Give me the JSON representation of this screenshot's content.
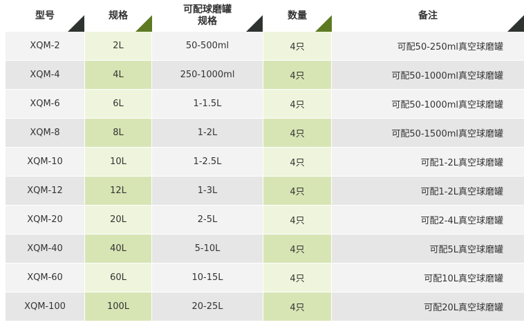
{
  "headers": [
    "型号",
    "规格",
    "可配球磨罐\n规格",
    "数量",
    "备注"
  ],
  "header_line1": "可配球磨罐",
  "header_line2": "规格",
  "colors": {
    "header_triangle_dark": "#2e3330",
    "header_triangle_green": "#5d7a22",
    "green_col_light": "#eef5dc",
    "green_col_dark": "#d7e5b4"
  },
  "rows": [
    [
      "XQM-2",
      "2L",
      "50-500ml",
      "4只",
      "可配50-250ml真空球磨罐"
    ],
    [
      "XQM-4",
      "4L",
      "250-1000ml",
      "4只",
      "可配50-1000ml真空球磨罐"
    ],
    [
      "XQM-6",
      "6L",
      "1-1.5L",
      "4只",
      "可配50-1000ml真空球磨罐"
    ],
    [
      "XQM-8",
      "8L",
      "1-2L",
      "4只",
      "可配50-1500ml真空球磨罐"
    ],
    [
      "XQM-10",
      "10L",
      "1-2.5L",
      "4只",
      "可配1-2L真空球磨罐"
    ],
    [
      "XQM-12",
      "12L",
      "1-3L",
      "4只",
      "可配1-2L真空球磨罐"
    ],
    [
      "XQM-20",
      "20L",
      "2-5L",
      "4只",
      "可配2-4L真空球磨罐"
    ],
    [
      "XQM-40",
      "40L",
      "5-10L",
      "4只",
      "可配5L真空球磨罐"
    ],
    [
      "XQM-60",
      "60L",
      "10-15L",
      "4只",
      "可配10L真空球磨罐"
    ],
    [
      "XQM-100",
      "100L",
      "20-25L",
      "4只",
      "可配20L真空球磨罐"
    ]
  ]
}
